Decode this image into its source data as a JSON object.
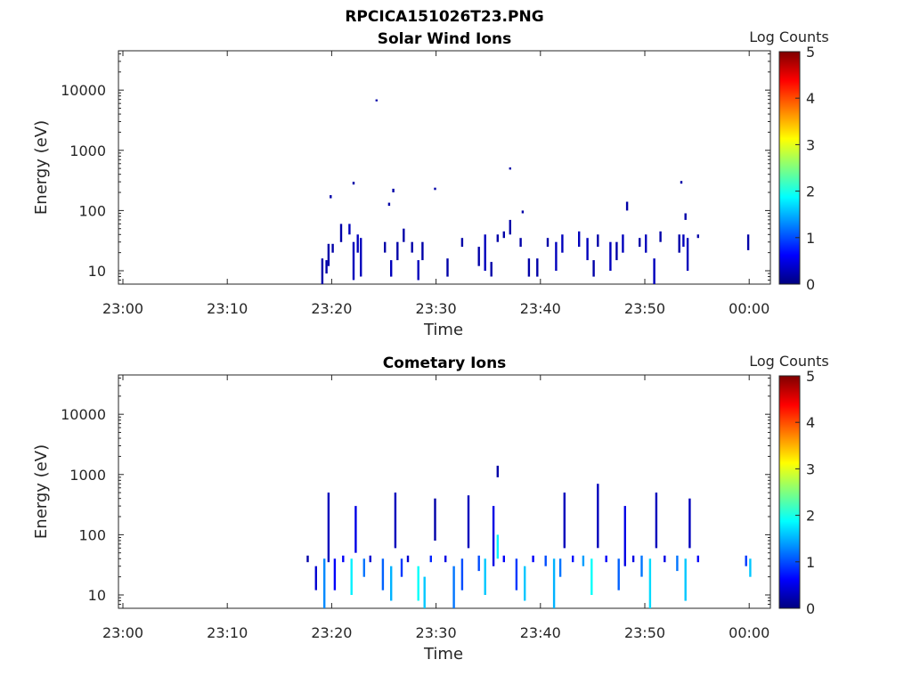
{
  "figure": {
    "title": "RPCICA151026T23.PNG"
  },
  "colorbar": {
    "label": "Log Counts",
    "ticks": [
      "0",
      "1",
      "2",
      "3",
      "4",
      "5"
    ],
    "colormap": [
      "#00007f",
      "#0000ff",
      "#007fff",
      "#00ffff",
      "#7fff7f",
      "#ffff00",
      "#ff7f00",
      "#ff0000",
      "#7f0000"
    ]
  },
  "chart_data": [
    {
      "type": "heatmap",
      "title": "Solar Wind Ions",
      "xlabel": "Time",
      "ylabel": "Energy (eV)",
      "x_ticks": [
        "23:00",
        "23:10",
        "23:20",
        "23:30",
        "23:40",
        "23:50",
        "00:00"
      ],
      "y_ticks": [
        "10",
        "100",
        "1000",
        "10000"
      ],
      "y_scale": "log",
      "x_range_min": [
        0,
        62
      ],
      "y_range_eV": [
        6,
        45000
      ],
      "colorbar_range": [
        0,
        5
      ],
      "grid": false,
      "cells": [
        [
          19.0,
          6,
          16,
          0.2
        ],
        [
          19.4,
          9,
          15,
          0.2
        ],
        [
          19.6,
          12,
          28,
          0.2
        ],
        [
          20.0,
          20,
          28,
          0.2
        ],
        [
          20.8,
          30,
          60,
          0.2
        ],
        [
          21.6,
          40,
          60,
          0.3
        ],
        [
          22.0,
          7,
          30,
          0.3
        ],
        [
          22.4,
          20,
          40,
          0.3
        ],
        [
          22.7,
          8,
          35,
          0.3
        ],
        [
          22.0,
          270,
          300,
          0.2
        ],
        [
          24.2,
          6500,
          7000,
          0.2
        ],
        [
          19.8,
          160,
          180,
          0.2
        ],
        [
          25.0,
          20,
          30,
          0.2
        ],
        [
          25.6,
          8,
          15,
          0.3
        ],
        [
          26.2,
          15,
          30,
          0.2
        ],
        [
          26.8,
          30,
          50,
          0.2
        ],
        [
          27.6,
          20,
          30,
          0.2
        ],
        [
          28.2,
          7,
          15,
          0.3
        ],
        [
          28.6,
          15,
          30,
          0.2
        ],
        [
          25.8,
          200,
          230,
          0.2
        ],
        [
          25.4,
          120,
          135,
          0.2
        ],
        [
          29.8,
          220,
          240,
          0.2
        ],
        [
          31.0,
          8,
          16,
          0.2
        ],
        [
          32.4,
          25,
          35,
          0.2
        ],
        [
          34.0,
          12,
          25,
          0.2
        ],
        [
          34.6,
          10,
          40,
          0.3
        ],
        [
          35.2,
          8,
          14,
          0.2
        ],
        [
          35.8,
          30,
          40,
          0.2
        ],
        [
          36.4,
          35,
          45,
          0.2
        ],
        [
          37.0,
          40,
          70,
          0.2
        ],
        [
          37.0,
          480,
          520,
          0.2
        ],
        [
          38.2,
          90,
          100,
          0.2
        ],
        [
          38.0,
          25,
          35,
          0.2
        ],
        [
          38.8,
          8,
          16,
          0.2
        ],
        [
          39.6,
          8,
          16,
          0.2
        ],
        [
          40.6,
          25,
          35,
          0.2
        ],
        [
          41.4,
          10,
          30,
          0.3
        ],
        [
          42.0,
          20,
          40,
          0.3
        ],
        [
          43.6,
          25,
          45,
          0.3
        ],
        [
          44.4,
          15,
          35,
          0.3
        ],
        [
          45.0,
          8,
          15,
          0.2
        ],
        [
          45.4,
          25,
          40,
          0.2
        ],
        [
          46.6,
          10,
          30,
          0.3
        ],
        [
          47.2,
          15,
          30,
          0.2
        ],
        [
          47.8,
          20,
          40,
          0.3
        ],
        [
          48.2,
          100,
          140,
          0.2
        ],
        [
          49.4,
          25,
          35,
          0.2
        ],
        [
          50.0,
          20,
          40,
          0.3
        ],
        [
          50.8,
          6,
          16,
          0.3
        ],
        [
          51.4,
          30,
          45,
          0.2
        ],
        [
          53.2,
          20,
          40,
          0.2
        ],
        [
          53.6,
          25,
          40,
          0.3
        ],
        [
          54.0,
          10,
          35,
          0.3
        ],
        [
          53.8,
          70,
          90,
          0.2
        ],
        [
          53.4,
          280,
          310,
          0.2
        ],
        [
          55.0,
          35,
          40,
          0.2
        ],
        [
          59.8,
          22,
          40,
          0.2
        ]
      ]
    },
    {
      "type": "heatmap",
      "title": "Cometary Ions",
      "xlabel": "Time",
      "ylabel": "Energy (eV)",
      "x_ticks": [
        "23:00",
        "23:10",
        "23:20",
        "23:30",
        "23:40",
        "23:50",
        "00:00"
      ],
      "y_ticks": [
        "10",
        "100",
        "1000",
        "10000"
      ],
      "y_scale": "log",
      "x_range_min": [
        0,
        62
      ],
      "y_range_eV": [
        6,
        45000
      ],
      "colorbar_range": [
        0,
        5
      ],
      "grid": false,
      "cells": [
        [
          17.6,
          35,
          45,
          0.2
        ],
        [
          18.4,
          12,
          30,
          0.4
        ],
        [
          19.2,
          6,
          40,
          1.3
        ],
        [
          19.6,
          35,
          500,
          0.3
        ],
        [
          20.2,
          12,
          40,
          0.6
        ],
        [
          21.0,
          35,
          45,
          0.6
        ],
        [
          21.8,
          10,
          40,
          1.8
        ],
        [
          22.2,
          50,
          300,
          0.5
        ],
        [
          23.0,
          20,
          40,
          1.2
        ],
        [
          23.6,
          35,
          45,
          0.4
        ],
        [
          24.8,
          12,
          40,
          1.1
        ],
        [
          25.6,
          8,
          30,
          1.5
        ],
        [
          26.0,
          60,
          500,
          0.3
        ],
        [
          26.6,
          20,
          40,
          0.9
        ],
        [
          27.2,
          35,
          45,
          0.4
        ],
        [
          28.2,
          8,
          30,
          1.9
        ],
        [
          28.8,
          6,
          20,
          1.6
        ],
        [
          29.4,
          35,
          45,
          0.8
        ],
        [
          29.8,
          80,
          400,
          0.2
        ],
        [
          30.8,
          35,
          45,
          0.5
        ],
        [
          31.6,
          6,
          30,
          1.2
        ],
        [
          32.4,
          12,
          40,
          1.0
        ],
        [
          33.0,
          60,
          450,
          0.3
        ],
        [
          34.0,
          25,
          45,
          1.0
        ],
        [
          34.6,
          10,
          40,
          1.6
        ],
        [
          35.4,
          30,
          300,
          0.5
        ],
        [
          35.8,
          40,
          100,
          1.8
        ],
        [
          35.8,
          900,
          1400,
          0.2
        ],
        [
          36.4,
          35,
          45,
          0.6
        ],
        [
          37.6,
          12,
          40,
          0.9
        ],
        [
          38.4,
          8,
          30,
          1.6
        ],
        [
          39.2,
          35,
          45,
          0.6
        ],
        [
          40.4,
          30,
          45,
          1.0
        ],
        [
          41.2,
          6,
          40,
          1.5
        ],
        [
          41.8,
          20,
          40,
          1.2
        ],
        [
          42.2,
          60,
          500,
          0.3
        ],
        [
          43.0,
          35,
          45,
          0.7
        ],
        [
          44.0,
          30,
          45,
          1.4
        ],
        [
          44.8,
          10,
          40,
          1.9
        ],
        [
          45.4,
          60,
          700,
          0.3
        ],
        [
          46.2,
          35,
          45,
          0.6
        ],
        [
          47.4,
          12,
          40,
          1.1
        ],
        [
          48.0,
          30,
          300,
          0.5
        ],
        [
          48.8,
          35,
          45,
          0.5
        ],
        [
          49.6,
          20,
          45,
          1.2
        ],
        [
          50.4,
          6,
          40,
          1.7
        ],
        [
          51.0,
          60,
          500,
          0.3
        ],
        [
          51.8,
          35,
          45,
          0.5
        ],
        [
          53.0,
          25,
          45,
          1.2
        ],
        [
          53.8,
          8,
          40,
          1.6
        ],
        [
          54.2,
          60,
          400,
          0.3
        ],
        [
          55.0,
          35,
          45,
          0.6
        ],
        [
          59.6,
          30,
          45,
          0.9
        ],
        [
          60.0,
          20,
          40,
          1.6
        ]
      ]
    }
  ]
}
